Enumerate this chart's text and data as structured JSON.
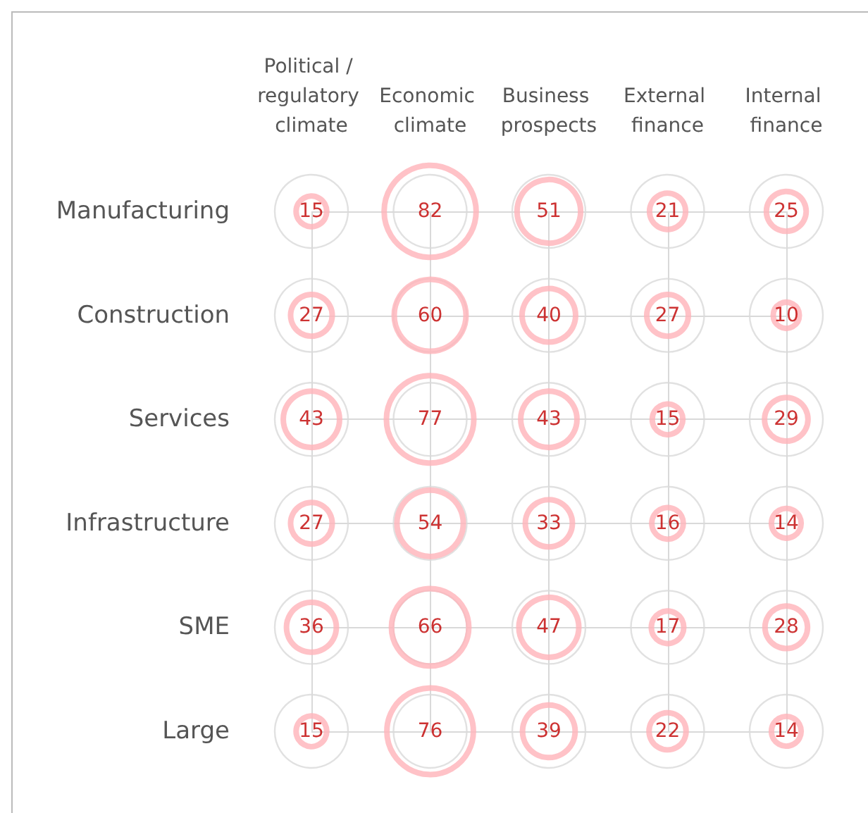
{
  "chart_data": {
    "type": "heatmap",
    "categories": [
      "Political / regulatory climate",
      "Economic climate",
      "Business prospects",
      "External finance",
      "Internal finance"
    ],
    "y_categories": [
      "Manufacturing",
      "Construction",
      "Services",
      "Infrastructure",
      "SME",
      "Large"
    ],
    "cells": [
      [
        15,
        82,
        51,
        21,
        25
      ],
      [
        27,
        60,
        40,
        27,
        10
      ],
      [
        43,
        77,
        43,
        15,
        29
      ],
      [
        27,
        54,
        33,
        16,
        14
      ],
      [
        36,
        66,
        47,
        17,
        28
      ],
      [
        15,
        76,
        39,
        22,
        14
      ]
    ],
    "color": "#ffb3b9",
    "data_labels": true,
    "grid": true
  }
}
